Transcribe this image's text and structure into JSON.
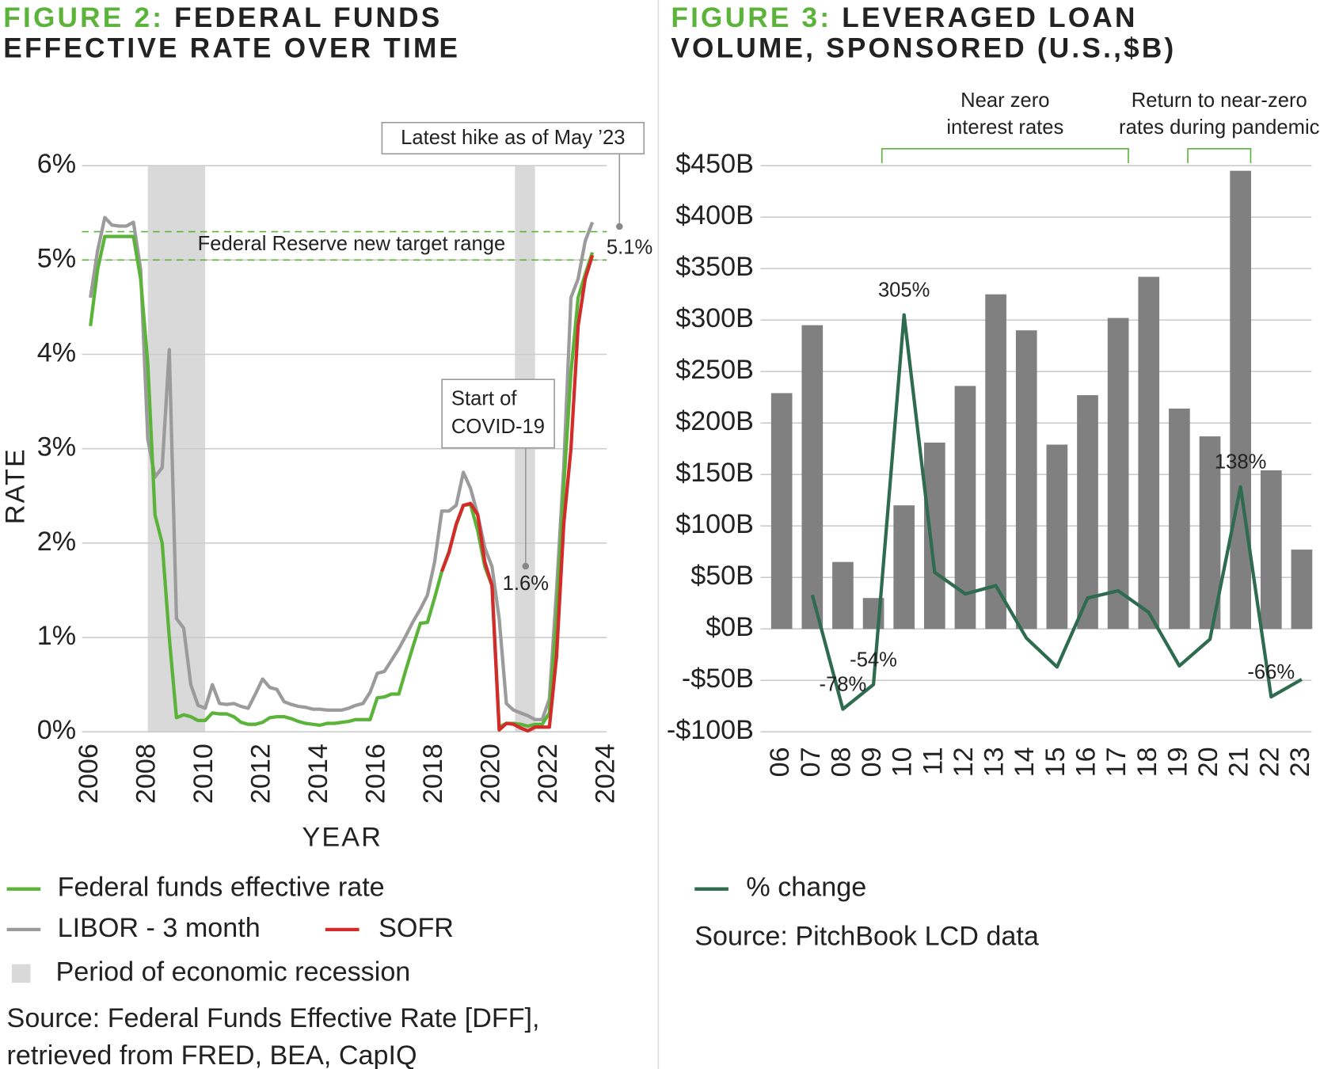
{
  "chart_data": [
    {
      "type": "line",
      "figure_label": "FIGURE 2:",
      "title_lines": [
        "FEDERAL FUNDS",
        "EFFECTIVE RATE OVER TIME"
      ],
      "y_label": "RATE",
      "x_label": "YEAR",
      "x": [
        2006,
        2006.25,
        2006.5,
        2006.75,
        2007,
        2007.25,
        2007.5,
        2007.75,
        2008,
        2008.25,
        2008.5,
        2008.75,
        2009,
        2009.25,
        2009.5,
        2009.75,
        2010,
        2010.25,
        2010.5,
        2010.75,
        2011,
        2011.25,
        2011.5,
        2011.75,
        2012,
        2012.25,
        2012.5,
        2012.75,
        2013,
        2013.25,
        2013.5,
        2013.75,
        2014,
        2014.25,
        2014.5,
        2014.75,
        2015,
        2015.25,
        2015.5,
        2015.75,
        2016,
        2016.25,
        2016.5,
        2016.75,
        2017,
        2017.25,
        2017.5,
        2017.75,
        2018,
        2018.25,
        2018.5,
        2018.75,
        2019,
        2019.25,
        2019.5,
        2019.75,
        2020,
        2020.25,
        2020.5,
        2020.75,
        2021,
        2021.25,
        2021.5,
        2021.75,
        2022,
        2022.25,
        2022.5,
        2022.75,
        2023,
        2023.25,
        2023.5
      ],
      "series": [
        {
          "name": "Federal funds effective rate",
          "color": "#5bb33a",
          "values": [
            4.3,
            4.9,
            5.25,
            5.25,
            5.25,
            5.25,
            5.25,
            4.8,
            3.9,
            2.3,
            2.0,
            1.0,
            0.15,
            0.18,
            0.16,
            0.12,
            0.12,
            0.2,
            0.19,
            0.19,
            0.16,
            0.1,
            0.08,
            0.08,
            0.1,
            0.15,
            0.16,
            0.16,
            0.14,
            0.11,
            0.09,
            0.08,
            0.07,
            0.09,
            0.09,
            0.1,
            0.11,
            0.13,
            0.13,
            0.13,
            0.36,
            0.37,
            0.4,
            0.4,
            0.66,
            0.91,
            1.15,
            1.16,
            1.42,
            1.7,
            1.91,
            2.19,
            2.4,
            2.41,
            2.13,
            1.75,
            1.55,
            0.05,
            0.09,
            0.09,
            0.08,
            0.06,
            0.08,
            0.08,
            0.2,
            1.2,
            2.6,
            3.8,
            4.6,
            4.85,
            5.08
          ]
        },
        {
          "name": "LIBOR - 3 month",
          "color": "#9b9b9b",
          "values": [
            4.6,
            5.1,
            5.45,
            5.37,
            5.36,
            5.36,
            5.4,
            4.9,
            3.1,
            2.7,
            2.8,
            4.05,
            1.2,
            1.1,
            0.5,
            0.28,
            0.25,
            0.5,
            0.3,
            0.29,
            0.3,
            0.27,
            0.25,
            0.4,
            0.56,
            0.47,
            0.45,
            0.32,
            0.29,
            0.27,
            0.26,
            0.24,
            0.24,
            0.23,
            0.23,
            0.23,
            0.25,
            0.28,
            0.3,
            0.42,
            0.62,
            0.64,
            0.76,
            0.88,
            1.02,
            1.17,
            1.3,
            1.45,
            1.8,
            2.34,
            2.34,
            2.4,
            2.75,
            2.58,
            2.3,
            1.95,
            1.75,
            1.2,
            0.3,
            0.23,
            0.2,
            0.17,
            0.13,
            0.13,
            0.35,
            1.5,
            2.8,
            4.6,
            4.8,
            5.2,
            5.4
          ]
        },
        {
          "name": "SOFR",
          "color": "#d32a2a",
          "values": [
            null,
            null,
            null,
            null,
            null,
            null,
            null,
            null,
            null,
            null,
            null,
            null,
            null,
            null,
            null,
            null,
            null,
            null,
            null,
            null,
            null,
            null,
            null,
            null,
            null,
            null,
            null,
            null,
            null,
            null,
            null,
            null,
            null,
            null,
            null,
            null,
            null,
            null,
            null,
            null,
            null,
            null,
            null,
            null,
            null,
            null,
            null,
            null,
            null,
            1.7,
            1.9,
            2.2,
            2.4,
            2.42,
            2.3,
            1.8,
            1.55,
            0.02,
            0.09,
            0.08,
            0.04,
            0.01,
            0.05,
            0.05,
            0.05,
            0.8,
            2.2,
            3.0,
            4.3,
            4.8,
            5.05
          ]
        }
      ],
      "recession_label": "Period of economic recession",
      "recession_color": "#d9d9d9",
      "recessions": [
        [
          2008,
          2010
        ],
        [
          2020.8,
          2021.5
        ]
      ],
      "target_range": [
        5,
        5.3
      ],
      "target_label": "Federal Reserve new target range",
      "target_color": "#5bb33a",
      "annotations": [
        {
          "lines": [
            "Latest hike as of May ’23"
          ],
          "value_label": "5.1%"
        },
        {
          "lines": [
            "Start of",
            "COVID-19"
          ],
          "value_label": "1.6%"
        }
      ],
      "xlim": [
        2006,
        2024
      ],
      "xticks": [
        2006,
        2008,
        2010,
        2012,
        2014,
        2016,
        2018,
        2020,
        2022,
        2024
      ],
      "ylim": [
        0,
        6
      ],
      "yticks": [
        {
          "value": 0,
          "label": "0%"
        },
        {
          "value": 1,
          "label": "1%"
        },
        {
          "value": 2,
          "label": "2%"
        },
        {
          "value": 3,
          "label": "3%"
        },
        {
          "value": 4,
          "label": "4%"
        },
        {
          "value": 5,
          "label": "5%"
        },
        {
          "value": 6,
          "label": "6%"
        }
      ],
      "grid": true,
      "source": [
        "Source: Federal Funds Effective Rate [DFF],",
        "retrieved from FRED, BEA, CapIQ"
      ]
    },
    {
      "type": "bar",
      "figure_label": "FIGURE 3:",
      "title_lines": [
        "LEVERAGED LOAN",
        "VOLUME, SPONSORED (U.S.,$B)"
      ],
      "categories": [
        "06",
        "07",
        "08",
        "09",
        "10",
        "11",
        "12",
        "13",
        "14",
        "15",
        "16",
        "17",
        "18",
        "19",
        "20",
        "21",
        "22",
        "23"
      ],
      "values": [
        229,
        295,
        65,
        30,
        120,
        181,
        236,
        325,
        290,
        179,
        227,
        302,
        342,
        214,
        187,
        445,
        154,
        77
      ],
      "color": "#808080",
      "line_series": {
        "name": "% change",
        "color": "#2e6b4f",
        "values": [
          null,
          33,
          -78,
          -54,
          305,
          55,
          34,
          42,
          -9,
          -37,
          30,
          37,
          16,
          -36,
          -10,
          138,
          -66,
          -49
        ],
        "value_labels": [
          null,
          null,
          "-78%",
          "-54%",
          "305%",
          null,
          null,
          null,
          null,
          null,
          null,
          null,
          null,
          null,
          null,
          "138%",
          "-66%",
          null
        ]
      },
      "value_label_colors": {
        "positive": "#6cbf4a",
        "negative": "#d9393e"
      },
      "brackets": [
        {
          "lines": [
            "Near zero",
            "interest rates"
          ],
          "from": 3,
          "to": 11
        },
        {
          "lines": [
            "Return to near-zero",
            "rates during pandemic"
          ],
          "from": 13,
          "to": 15
        }
      ],
      "bracket_color": "#5bb33a",
      "ylim": [
        -100,
        450
      ],
      "yticks": [
        {
          "value": -100,
          "label": "-$100B"
        },
        {
          "value": -50,
          "label": "-$50B"
        },
        {
          "value": 0,
          "label": "$0B"
        },
        {
          "value": 50,
          "label": "$50B"
        },
        {
          "value": 100,
          "label": "$100B"
        },
        {
          "value": 150,
          "label": "$150B"
        },
        {
          "value": 200,
          "label": "$200B"
        },
        {
          "value": 250,
          "label": "$250B"
        },
        {
          "value": 300,
          "label": "$300B"
        },
        {
          "value": 350,
          "label": "$350B"
        },
        {
          "value": 400,
          "label": "$400B"
        },
        {
          "value": 450,
          "label": "$450B"
        }
      ],
      "grid": true,
      "source": [
        "Source: PitchBook LCD data"
      ]
    }
  ]
}
